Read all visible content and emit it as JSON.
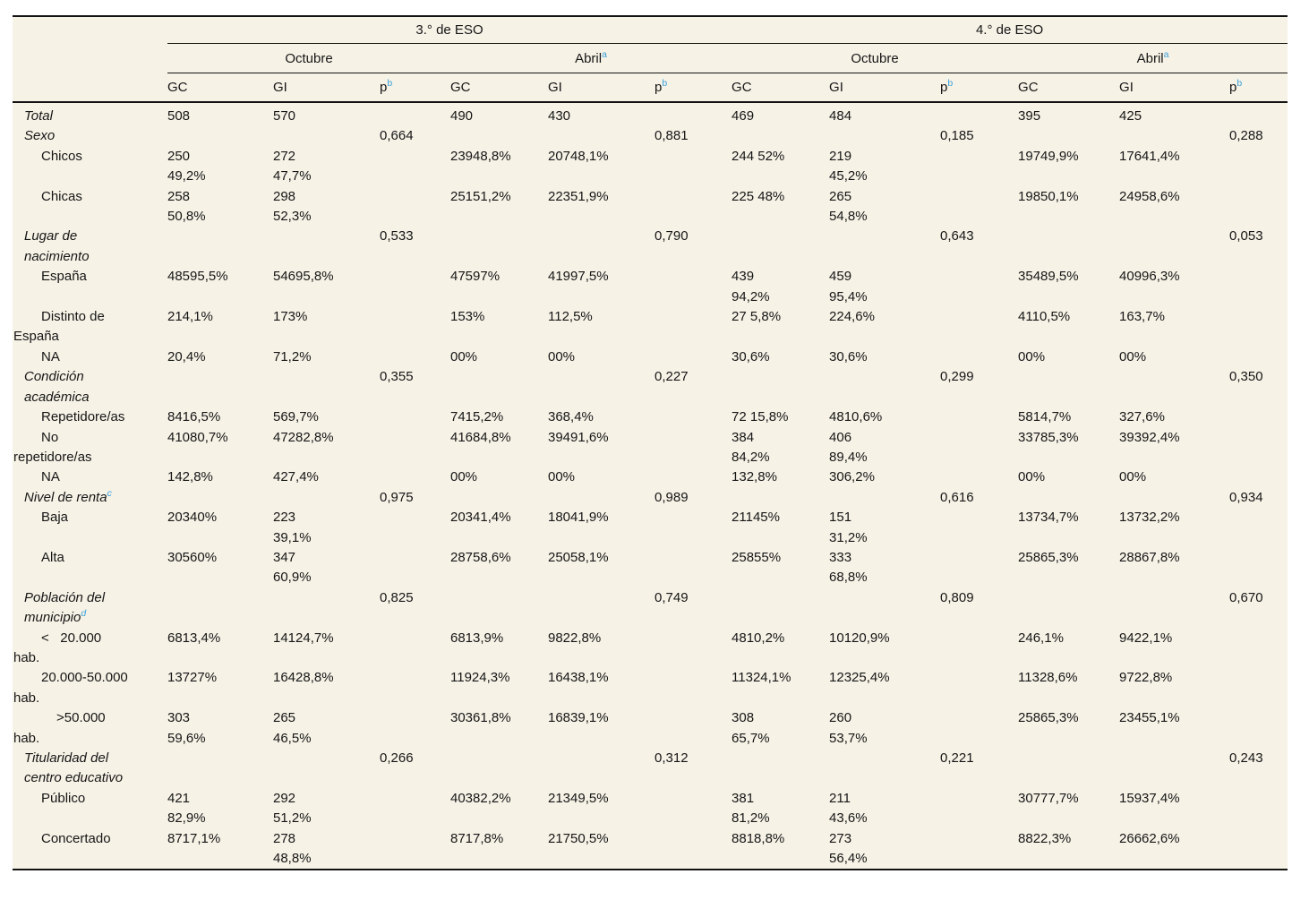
{
  "table": {
    "colors": {
      "accent_blue": "#3aa0da",
      "panel_background": "#f6f2e6",
      "text": "#161616",
      "border": "#131313"
    },
    "group_headers": [
      "3.° de ESO",
      "4.° de ESO"
    ],
    "time_headers": [
      {
        "label": "Octubre",
        "sup": ""
      },
      {
        "label": "Abril",
        "sup": "a"
      },
      {
        "label": "Octubre",
        "sup": ""
      },
      {
        "label": "Abril",
        "sup": "a"
      }
    ],
    "col_headers": [
      {
        "label": "GC",
        "sup": ""
      },
      {
        "label": "GI",
        "sup": ""
      },
      {
        "label": "p",
        "sup": "b"
      },
      {
        "label": "GC",
        "sup": ""
      },
      {
        "label": "GI",
        "sup": ""
      },
      {
        "label": "p",
        "sup": "b"
      },
      {
        "label": "GC",
        "sup": ""
      },
      {
        "label": "GI",
        "sup": ""
      },
      {
        "label": "p",
        "sup": "b"
      },
      {
        "label": "GC",
        "sup": ""
      },
      {
        "label": "GI",
        "sup": ""
      },
      {
        "label": "p",
        "sup": "b"
      }
    ],
    "rows": [
      {
        "label": [
          {
            "t": "Total",
            "ind": "group"
          }
        ],
        "cells": [
          "508",
          "570",
          "",
          "490",
          "430",
          "",
          "469",
          "484",
          "",
          "395",
          "425",
          ""
        ]
      },
      {
        "label": [
          {
            "t": "Sexo",
            "ind": "group"
          }
        ],
        "cells": [
          "",
          "",
          "0,664",
          "",
          "",
          "0,881",
          "",
          "",
          "0,185",
          "",
          "",
          "0,288"
        ]
      },
      {
        "label": [
          {
            "t": "Chicos",
            "ind": "sub"
          }
        ],
        "cells": [
          "250\n49,2%",
          "272\n47,7%",
          "",
          "23948,8%",
          "20748,1%",
          "",
          "244 52%",
          "219\n45,2%",
          "",
          "19749,9%",
          "17641,4%",
          ""
        ]
      },
      {
        "label": [
          {
            "t": "Chicas",
            "ind": "sub"
          }
        ],
        "cells": [
          "258\n50,8%",
          "298\n52,3%",
          "",
          "25151,2%",
          "22351,9%",
          "",
          "225 48%",
          "265\n54,8%",
          "",
          "19850,1%",
          "24958,6%",
          ""
        ]
      },
      {
        "label": [
          {
            "t": "Lugar de",
            "ind": "group"
          },
          {
            "t": "nacimiento",
            "ind": "group"
          }
        ],
        "cells": [
          "",
          "",
          "0,533",
          "",
          "",
          "0,790",
          "",
          "",
          "0,643",
          "",
          "",
          "0,053"
        ]
      },
      {
        "label": [
          {
            "t": "España",
            "ind": "sub"
          }
        ],
        "cells": [
          "48595,5%",
          "54695,8%",
          "",
          "47597%",
          "41997,5%",
          "",
          "439\n94,2%",
          "459\n95,4%",
          "",
          "35489,5%",
          "40996,3%",
          ""
        ]
      },
      {
        "label": [
          {
            "t": "Distinto de",
            "ind": "sub"
          },
          {
            "t": "España",
            "ind": "cont"
          }
        ],
        "cells": [
          "214,1%",
          "173%",
          "",
          "153%",
          "112,5%",
          "",
          "27 5,8%",
          "224,6%",
          "",
          "4110,5%",
          "163,7%",
          ""
        ]
      },
      {
        "label": [
          {
            "t": "NA",
            "ind": "sub"
          }
        ],
        "cells": [
          "20,4%",
          "71,2%",
          "",
          "00%",
          "00%",
          "",
          "30,6%",
          "30,6%",
          "",
          "00%",
          "00%",
          ""
        ]
      },
      {
        "label": [
          {
            "t": "Condición",
            "ind": "group"
          },
          {
            "t": "académica",
            "ind": "group"
          }
        ],
        "cells": [
          "",
          "",
          "0,355",
          "",
          "",
          "0,227",
          "",
          "",
          "0,299",
          "",
          "",
          "0,350"
        ]
      },
      {
        "label": [
          {
            "t": "Repetidore/as",
            "ind": "sub"
          }
        ],
        "cells": [
          "8416,5%",
          "569,7%",
          "",
          "7415,2%",
          "368,4%",
          "",
          "72 15,8%",
          "4810,6%",
          "",
          "5814,7%",
          "327,6%",
          ""
        ]
      },
      {
        "label": [
          {
            "t": "No",
            "ind": "sub"
          },
          {
            "t": "repetidore/as",
            "ind": "cont"
          }
        ],
        "cells": [
          "41080,7%",
          "47282,8%",
          "",
          "41684,8%",
          "39491,6%",
          "",
          "384\n84,2%",
          "406\n89,4%",
          "",
          "33785,3%",
          "39392,4%",
          ""
        ]
      },
      {
        "label": [
          {
            "t": "NA",
            "ind": "sub"
          }
        ],
        "cells": [
          "142,8%",
          "427,4%",
          "",
          "00%",
          "00%",
          "",
          "132,8%",
          "306,2%",
          "",
          "00%",
          "00%",
          ""
        ]
      },
      {
        "label": [
          {
            "t": "Nivel de renta",
            "ind": "group",
            "sup": "c"
          }
        ],
        "cells": [
          "",
          "",
          "0,975",
          "",
          "",
          "0,989",
          "",
          "",
          "0,616",
          "",
          "",
          "0,934"
        ]
      },
      {
        "label": [
          {
            "t": "Baja",
            "ind": "sub"
          }
        ],
        "cells": [
          "20340%",
          "223\n39,1%",
          "",
          "20341,4%",
          "18041,9%",
          "",
          "21145%",
          "151\n31,2%",
          "",
          "13734,7%",
          "13732,2%",
          ""
        ]
      },
      {
        "label": [
          {
            "t": "Alta",
            "ind": "sub"
          }
        ],
        "cells": [
          "30560%",
          "347\n60,9%",
          "",
          "28758,6%",
          "25058,1%",
          "",
          "25855%",
          "333\n68,8%",
          "",
          "25865,3%",
          "28867,8%",
          ""
        ]
      },
      {
        "label": [
          {
            "t": "Población del",
            "ind": "group"
          },
          {
            "t": "municipio",
            "ind": "group",
            "sup": "d"
          }
        ],
        "cells": [
          "",
          "",
          "0,825",
          "",
          "",
          "0,749",
          "",
          "",
          "0,809",
          "",
          "",
          "0,670"
        ]
      },
      {
        "label": [
          {
            "t": "<   20.000",
            "ind": "sub"
          },
          {
            "t": "hab.",
            "ind": "cont"
          }
        ],
        "cells": [
          "6813,4%",
          "14124,7%",
          "",
          "6813,9%",
          "9822,8%",
          "",
          "4810,2%",
          "10120,9%",
          "",
          "246,1%",
          "9422,1%",
          ""
        ]
      },
      {
        "label": [
          {
            "t": "20.000-50.000",
            "ind": "sub"
          },
          {
            "t": "hab.",
            "ind": "cont"
          }
        ],
        "cells": [
          "13727%",
          "16428,8%",
          "",
          "11924,3%",
          "16438,1%",
          "",
          "11324,1%",
          "12325,4%",
          "",
          "11328,6%",
          "9722,8%",
          ""
        ]
      },
      {
        "label": [
          {
            "t": ">50.000",
            "ind": "sub2"
          },
          {
            "t": "hab.",
            "ind": "cont"
          }
        ],
        "cells": [
          "303\n59,6%",
          "265\n46,5%",
          "",
          "30361,8%",
          "16839,1%",
          "",
          "308\n65,7%",
          "260\n53,7%",
          "",
          "25865,3%",
          "23455,1%",
          ""
        ]
      },
      {
        "label": [
          {
            "t": "Titularidad del",
            "ind": "group"
          },
          {
            "t": "centro educativo",
            "ind": "group"
          }
        ],
        "cells": [
          "",
          "",
          "0,266",
          "",
          "",
          "0,312",
          "",
          "",
          "0,221",
          "",
          "",
          "0,243"
        ]
      },
      {
        "label": [
          {
            "t": "Público",
            "ind": "sub"
          }
        ],
        "cells": [
          "421\n82,9%",
          "292\n51,2%",
          "",
          "40382,2%",
          "21349,5%",
          "",
          "381\n81,2%",
          "211\n43,6%",
          "",
          "30777,7%",
          "15937,4%",
          ""
        ]
      },
      {
        "label": [
          {
            "t": "Concertado",
            "ind": "sub"
          }
        ],
        "cells": [
          "8717,1%",
          "278\n48,8%",
          "",
          "8717,8%",
          "21750,5%",
          "",
          "8818,8%",
          "273\n56,4%",
          "",
          "8822,3%",
          "26662,6%",
          ""
        ]
      }
    ]
  }
}
